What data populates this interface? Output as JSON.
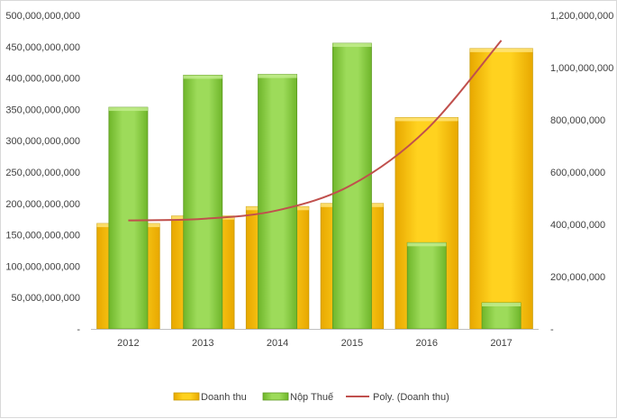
{
  "chart_data": {
    "type": "bar",
    "categories": [
      "2012",
      "2013",
      "2014",
      "2015",
      "2016",
      "2017"
    ],
    "series": [
      {
        "name": "Doanh thu",
        "axis": "left",
        "color": "#ffc000",
        "values": [
          168000000000,
          180000000000,
          195000000000,
          200000000000,
          337000000000,
          447000000000
        ]
      },
      {
        "name": "Nộp Thuế",
        "axis": "right",
        "color": "#92d050",
        "values": [
          848000000,
          971000000,
          974000000,
          1093000000,
          330000000,
          100000000
        ]
      }
    ],
    "trendline": {
      "name": "Poly. (Doanh thu)",
      "type": "line",
      "color": "#c0504d",
      "axis": "left",
      "values": [
        173000000000,
        175500000000,
        189000000000,
        230000000000,
        318000000000,
        460000000000
      ]
    },
    "y_left": {
      "ylim": [
        0,
        500000000000
      ],
      "ticks": [
        "-",
        "50,000,000,000",
        "100,000,000,000",
        "150,000,000,000",
        "200,000,000,000",
        "250,000,000,000",
        "300,000,000,000",
        "350,000,000,000",
        "400,000,000,000",
        "450,000,000,000",
        "500,000,000,000"
      ]
    },
    "y_right": {
      "ylim": [
        0,
        1200000000
      ],
      "ticks": [
        "-",
        "200,000,000",
        "400,000,000",
        "600,000,000",
        "800,000,000",
        "1,000,000,000",
        "1,200,000,000"
      ]
    },
    "legend": {
      "position": "bottom",
      "items": [
        "Doanh thu",
        "Nộp Thuế",
        "Poly. (Doanh thu)"
      ]
    },
    "title": "",
    "xlabel": "",
    "ylabel": "",
    "grid": false
  }
}
